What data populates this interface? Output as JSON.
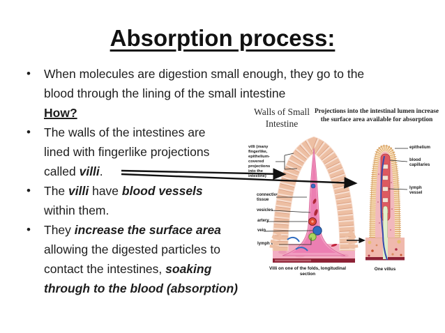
{
  "slide": {
    "title": "Absorption process:",
    "bullets": [
      {
        "runs": [
          {
            "t": "When molecules are digestion small enough, they go to the"
          },
          {
            "br": true,
            "t": "blood through the lining of the small intestine"
          },
          {
            "br": true,
            "t": "How?",
            "s": "bu"
          }
        ]
      },
      {
        "runs": [
          {
            "t": "The walls of the intestines are"
          },
          {
            "br": true,
            "t": "lined with fingerlike projections"
          },
          {
            "br": true,
            "t": "called "
          },
          {
            "t": "villi",
            "s": "bi"
          },
          {
            "t": "."
          }
        ]
      },
      {
        "runs": [
          {
            "t": "The "
          },
          {
            "t": "villi",
            "s": "bi"
          },
          {
            "t": " have "
          },
          {
            "t": "blood vessels",
            "s": "bi"
          },
          {
            "br": true,
            "t": "within them."
          }
        ]
      },
      {
        "runs": [
          {
            "t": "They "
          },
          {
            "t": "increase the surface area",
            "s": "bi"
          },
          {
            "br": true,
            "t": "allowing the digested particles to"
          },
          {
            "br": true,
            "t": "contact the intestines, "
          },
          {
            "t": "soaking",
            "s": "bi"
          },
          {
            "br": true,
            "t": "through to the blood (absorption)",
            "s": "bi"
          }
        ]
      }
    ]
  },
  "diagram": {
    "heading_left": "Walls of Small Intestine",
    "heading_right": "Projections into the intestinal lumen increase the surface area available for absorption",
    "left_figure": {
      "label_villi": "villi (many fingerlike, epithelium- covered projections into the intestine)",
      "label_connective": "connective tissue",
      "label_vesicles": "vesicles",
      "label_artery": "artery",
      "label_vein": "vein",
      "label_lymph": "lymph vessel",
      "caption": "Villi on one of the folds, longitudinal section"
    },
    "right_figure": {
      "label_epithelium": "epithelium",
      "label_blood_capillaries": "blood capillaries",
      "label_lymph": "lymph vessel",
      "caption": "One villus"
    },
    "colors": {
      "epithelium_fringe": "#edbfa3",
      "villus_core_pink": "#f19cc0",
      "villus_core_dark": "#ec7fb2",
      "base_tissue": "#f3aec3",
      "footer_strip": "#8d2236",
      "artery_red": "#e04a30",
      "vein_blue": "#2e6cc0",
      "lymph_green": "#aad45f",
      "right_epithelium_stripe": "#dc9a55",
      "capillary_red": "#dd5a60",
      "lacteal_green": "#e2efcc",
      "arrow_black": "#111111"
    }
  }
}
